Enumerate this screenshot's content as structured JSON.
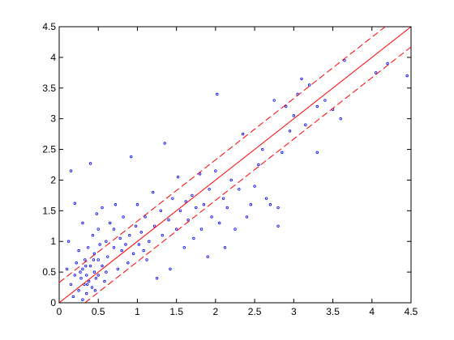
{
  "chart_data": {
    "type": "scatter",
    "xlim": [
      0,
      4.5
    ],
    "ylim": [
      0,
      4.5
    ],
    "xticks": [
      0,
      0.5,
      1,
      1.5,
      2,
      2.5,
      3,
      3.5,
      4,
      4.5
    ],
    "yticks": [
      0,
      0.5,
      1,
      1.5,
      2,
      2.5,
      3,
      3.5,
      4,
      4.5
    ],
    "grid": false,
    "series": [
      {
        "type": "scatter",
        "color": "#0000ff",
        "x": [
          0.15,
          0.2,
          0.12,
          0.1,
          0.15,
          0.18,
          0.2,
          0.22,
          0.25,
          0.25,
          0.28,
          0.3,
          0.3,
          0.3,
          0.32,
          0.33,
          0.35,
          0.35,
          0.37,
          0.38,
          0.4,
          0.4,
          0.42,
          0.43,
          0.45,
          0.45,
          0.47,
          0.48,
          0.5,
          0.5,
          0.52,
          0.55,
          0.55,
          0.58,
          0.6,
          0.62,
          0.65,
          0.7,
          0.72,
          0.75,
          0.78,
          0.8,
          0.82,
          0.85,
          0.9,
          0.92,
          0.95,
          0.98,
          1.0,
          1.02,
          1.05,
          1.1,
          1.12,
          1.15,
          1.2,
          1.22,
          1.25,
          1.3,
          1.32,
          1.35,
          1.4,
          1.42,
          1.45,
          1.5,
          1.52,
          1.55,
          1.6,
          1.62,
          1.65,
          1.7,
          1.72,
          1.75,
          1.8,
          1.82,
          1.85,
          1.9,
          1.92,
          1.95,
          2.0,
          2.02,
          2.05,
          2.1,
          2.12,
          2.15,
          2.2,
          2.25,
          2.3,
          2.35,
          2.4,
          2.45,
          2.5,
          2.55,
          2.6,
          2.65,
          2.7,
          2.75,
          2.8,
          2.8,
          2.85,
          2.9,
          2.95,
          3.0,
          3.05,
          3.1,
          3.15,
          3.2,
          3.3,
          3.3,
          3.4,
          3.5,
          3.6,
          3.65,
          4.05,
          4.45,
          4.2,
          0.27,
          0.34,
          0.36,
          0.44,
          0.46,
          0.5,
          0.6,
          0.7,
          0.88,
          1.08
        ],
        "values": [
          2.15,
          1.62,
          1.0,
          0.55,
          0.3,
          0.1,
          0.45,
          0.65,
          0.2,
          0.85,
          0.4,
          0.05,
          0.55,
          1.3,
          0.3,
          0.7,
          0.45,
          0.15,
          0.9,
          0.35,
          0.6,
          2.27,
          0.25,
          1.1,
          0.5,
          0.8,
          0.4,
          1.45,
          0.7,
          1.2,
          0.95,
          0.6,
          1.55,
          0.35,
          1.0,
          0.75,
          1.3,
          0.9,
          1.6,
          0.55,
          1.05,
          0.85,
          1.4,
          0.95,
          1.1,
          2.38,
          0.8,
          1.25,
          1.6,
          0.95,
          1.15,
          1.4,
          0.7,
          1.0,
          1.8,
          1.25,
          0.4,
          1.5,
          1.1,
          2.6,
          1.35,
          0.55,
          1.7,
          1.2,
          2.05,
          1.5,
          0.9,
          1.65,
          1.35,
          1.75,
          1.05,
          1.55,
          2.1,
          1.2,
          1.6,
          0.75,
          1.85,
          1.4,
          2.15,
          3.4,
          1.3,
          1.7,
          0.9,
          1.55,
          2.0,
          1.2,
          1.85,
          2.75,
          1.4,
          1.6,
          1.9,
          2.25,
          2.5,
          1.7,
          1.6,
          3.3,
          1.55,
          1.25,
          2.45,
          3.2,
          2.8,
          3.05,
          3.4,
          3.65,
          2.9,
          3.55,
          2.45,
          3.2,
          3.3,
          3.15,
          3.0,
          3.95,
          3.75,
          3.7,
          3.9,
          0.5,
          0.6,
          0.3,
          0.7,
          0.2,
          0.45,
          0.5,
          1.2,
          0.65,
          0.85
        ]
      },
      {
        "type": "line",
        "color": "#ff0000",
        "dashed": false,
        "x": [
          0,
          4.5
        ],
        "values": [
          0,
          4.5
        ]
      },
      {
        "type": "line",
        "color": "#ff0000",
        "dashed": true,
        "x": [
          0,
          4.17
        ],
        "values": [
          0.33,
          4.5
        ]
      },
      {
        "type": "line",
        "color": "#ff0000",
        "dashed": true,
        "x": [
          0.33,
          4.5
        ],
        "values": [
          0,
          4.17
        ]
      }
    ]
  }
}
